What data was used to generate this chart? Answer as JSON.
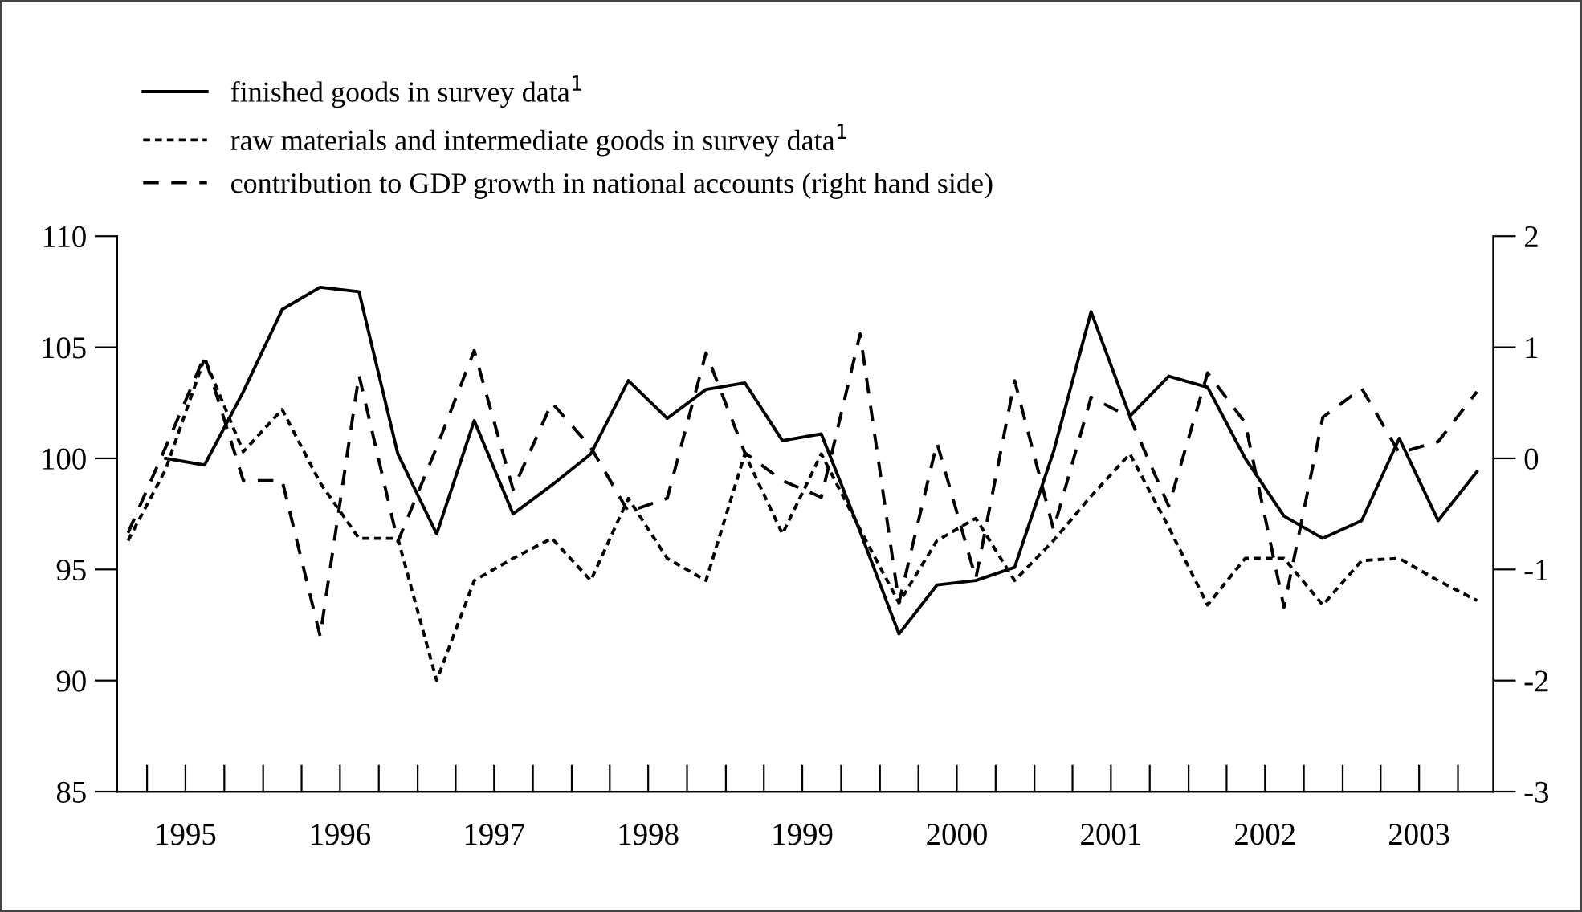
{
  "chart_data": {
    "type": "line",
    "ylim": [
      85,
      110
    ],
    "yticks": [
      85,
      90,
      95,
      100,
      105,
      110
    ],
    "y2lim": [
      -3,
      2
    ],
    "y2ticks": [
      {
        "value": -3,
        "label": "-3"
      },
      {
        "value": -2,
        "label": "-2"
      },
      {
        "value": -1,
        "label": "-1"
      },
      0,
      1,
      2
    ],
    "xlim": [
      "1995-01-20",
      "2003-12-24"
    ],
    "xticks": [
      {
        "value": "1995-07-01",
        "label": "1995"
      },
      {
        "value": "1996-07-01",
        "label": "1996"
      },
      {
        "value": "1997-07-01",
        "label": "1997"
      },
      {
        "value": "1998-07-01",
        "label": "1998"
      },
      {
        "value": "1999-07-01",
        "label": "1999"
      },
      {
        "value": "2000-07-01",
        "label": "2000"
      },
      {
        "value": "2001-07-01",
        "label": "2001"
      },
      {
        "value": "2002-07-01",
        "label": "2002"
      },
      {
        "value": "2003-07-01",
        "label": "2003"
      }
    ],
    "legend": "top",
    "grid": false,
    "marker": "none",
    "series": [
      {
        "name": "finished goods in survey data$^{1}$",
        "color": "#000000",
        "line_style": "solid",
        "x": [
          "1995-05-15",
          "1995-08-15",
          "1995-11-15",
          "1996-02-15",
          "1996-05-15",
          "1996-08-15",
          "1996-11-15",
          "1997-02-15",
          "1997-05-15",
          "1997-08-15",
          "1997-11-15",
          "1998-02-15",
          "1998-05-15",
          "1998-08-15",
          "1998-11-15",
          "1999-02-15",
          "1999-05-15",
          "1999-08-15",
          "1999-11-15",
          "2000-02-15",
          "2000-05-15",
          "2000-08-15",
          "2000-11-15",
          "2001-02-15",
          "2001-05-15",
          "2001-08-15",
          "2001-11-15",
          "2002-02-15",
          "2002-05-15",
          "2002-08-15",
          "2002-11-15",
          "2003-02-15",
          "2003-05-15",
          "2003-08-15",
          "2003-11-15"
        ],
        "values": [
          100.0,
          99.7,
          103.0,
          106.7,
          107.7,
          107.5,
          100.2,
          96.6,
          101.7,
          97.5,
          98.8,
          100.2,
          103.5,
          101.8,
          103.1,
          103.4,
          100.8,
          101.1,
          96.7,
          92.1,
          94.3,
          94.5,
          95.1,
          100.3,
          106.6,
          101.9,
          103.7,
          103.2,
          100.0,
          97.4,
          96.4,
          97.2,
          100.9,
          97.2,
          99.4
        ]
      },
      {
        "name": "raw materials and intermediate goods in survey data$^{1}$",
        "color": "#000000",
        "line_style": "dotted",
        "x": [
          "1995-02-15",
          "1995-05-15",
          "1995-08-15",
          "1995-11-15",
          "1996-02-15",
          "1996-05-15",
          "1996-08-15",
          "1996-11-15",
          "1997-02-15",
          "1997-05-15",
          "1997-08-15",
          "1997-11-15",
          "1998-02-15",
          "1998-05-15",
          "1998-08-15",
          "1998-11-15",
          "1999-02-15",
          "1999-05-15",
          "1999-08-15",
          "1999-11-15",
          "2000-02-15",
          "2000-05-15",
          "2000-08-15",
          "2000-11-15",
          "2001-02-15",
          "2001-05-15",
          "2001-08-15",
          "2001-11-15",
          "2002-02-15",
          "2002-05-15",
          "2002-08-15",
          "2002-11-15",
          "2003-02-15",
          "2003-05-15",
          "2003-08-15",
          "2003-11-15"
        ],
        "values": [
          96.3,
          99.5,
          104.5,
          100.3,
          102.2,
          98.9,
          96.4,
          96.4,
          90.0,
          94.5,
          95.5,
          96.4,
          94.5,
          98.2,
          95.5,
          94.5,
          100.2,
          96.6,
          100.2,
          96.8,
          93.5,
          96.3,
          97.3,
          94.5,
          96.3,
          98.3,
          100.2,
          96.9,
          93.4,
          95.5,
          95.5,
          93.4,
          95.4,
          95.5,
          94.5,
          93.6
        ]
      },
      {
        "name": "contribution to GDP growth in national accounts (right hand side)",
        "color": "#000000",
        "line_style": "dashed",
        "axis": "y2",
        "x": [
          "1995-02-15",
          "1995-05-15",
          "1995-08-15",
          "1995-11-15",
          "1996-02-15",
          "1996-05-15",
          "1996-08-15",
          "1996-11-15",
          "1997-02-15",
          "1997-05-15",
          "1997-08-15",
          "1997-11-15",
          "1998-02-15",
          "1998-05-15",
          "1998-08-15",
          "1998-11-15",
          "1999-02-15",
          "1999-05-15",
          "1999-08-15",
          "1999-11-15",
          "2000-02-15",
          "2000-05-15",
          "2000-08-15",
          "2000-11-15",
          "2001-02-15",
          "2001-05-15",
          "2001-08-15",
          "2001-11-15",
          "2002-02-15",
          "2002-05-15",
          "2002-08-15",
          "2002-11-15",
          "2003-02-15",
          "2003-05-15",
          "2003-08-15",
          "2003-11-15"
        ],
        "values": [
          -0.67,
          0.1,
          0.92,
          -0.2,
          -0.2,
          -1.6,
          0.75,
          -0.75,
          0.1,
          0.97,
          -0.28,
          0.5,
          0.1,
          -0.48,
          -0.36,
          0.95,
          0.05,
          -0.2,
          -0.35,
          1.12,
          -1.3,
          0.14,
          -1.08,
          0.7,
          -0.64,
          0.55,
          0.37,
          -0.43,
          0.77,
          0.32,
          -1.34,
          0.37,
          0.63,
          0.05,
          0.15,
          0.6
        ]
      }
    ]
  }
}
